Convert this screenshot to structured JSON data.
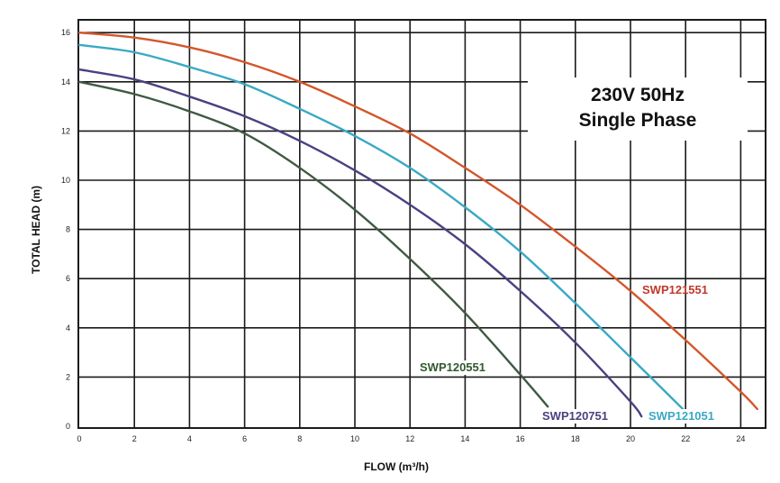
{
  "chart_data": {
    "type": "line",
    "xlabel": "FLOW (m³/h)",
    "ylabel": "TOTAL HEAD (m)",
    "xlim": [
      0,
      25
    ],
    "ylim": [
      0,
      16.5
    ],
    "xticks": [
      0,
      2,
      4,
      6,
      8,
      10,
      12,
      14,
      16,
      18,
      20,
      22,
      24
    ],
    "yticks": [
      0,
      2,
      4,
      6,
      8,
      10,
      12,
      14,
      16
    ],
    "grid": true,
    "info_box": [
      "230V 50Hz",
      "Single Phase"
    ],
    "series": [
      {
        "name": "SWP121551",
        "color": "#d4562a",
        "x": [
          0,
          2,
          4,
          6,
          8,
          10,
          12,
          14,
          16,
          18,
          20,
          22,
          24,
          24.6
        ],
        "y": [
          16.0,
          15.8,
          15.4,
          14.8,
          14.0,
          13.0,
          11.9,
          10.5,
          9.0,
          7.3,
          5.5,
          3.5,
          1.4,
          0.7
        ]
      },
      {
        "name": "SWP121051",
        "color": "#3aa9c4",
        "x": [
          0,
          2,
          4,
          6,
          8,
          10,
          12,
          14,
          16,
          18,
          20,
          21.9
        ],
        "y": [
          15.5,
          15.2,
          14.6,
          13.9,
          12.9,
          11.8,
          10.5,
          8.9,
          7.1,
          5.0,
          2.8,
          0.7
        ]
      },
      {
        "name": "SWP120751",
        "color": "#4a4182",
        "x": [
          0,
          2,
          4,
          6,
          8,
          10,
          12,
          14,
          16,
          18,
          20,
          20.4
        ],
        "y": [
          14.5,
          14.1,
          13.4,
          12.6,
          11.6,
          10.4,
          9.0,
          7.4,
          5.5,
          3.4,
          1.0,
          0.4
        ]
      },
      {
        "name": "SWP120551",
        "color": "#3f5a44",
        "x": [
          0,
          2,
          4,
          6,
          8,
          10,
          12,
          14,
          16,
          17
        ],
        "y": [
          14.0,
          13.5,
          12.8,
          11.9,
          10.5,
          8.8,
          6.8,
          4.6,
          2.1,
          0.8
        ]
      }
    ]
  }
}
